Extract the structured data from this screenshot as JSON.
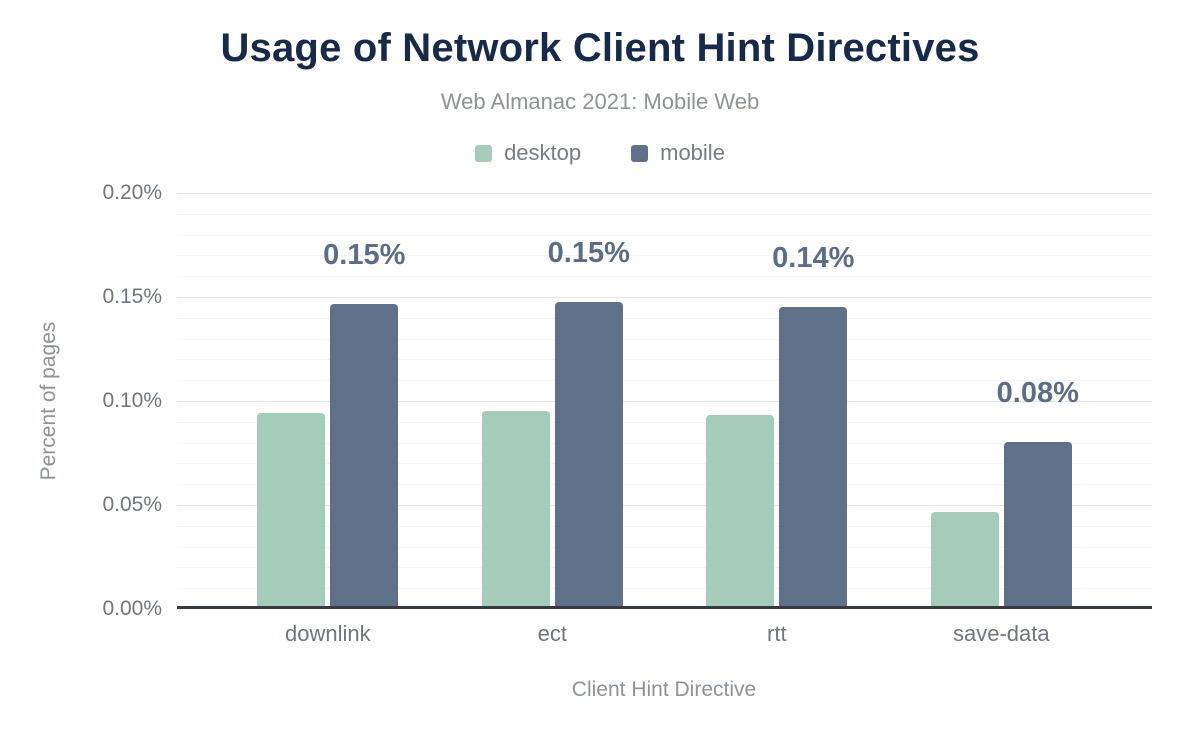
{
  "chart": {
    "title": "Usage of Network Client Hint Directives",
    "subtitle": "Web Almanac 2021: Mobile Web",
    "xlabel": "Client Hint Directive",
    "ylabel": "Percent of pages"
  },
  "colors": {
    "title_navy": "#182a4a",
    "desktop_green": "#a5cbb9",
    "mobile_slate": "#5f7089",
    "data_label": "#5c6d8a",
    "axis_text_gray": "#6f7680",
    "muted_text_gray": "#8d929b",
    "axis_line": "#363a40"
  },
  "chart_data": {
    "type": "bar",
    "title": "Usage of Network Client Hint Directives",
    "subtitle": "Web Almanac 2021: Mobile Web",
    "xlabel": "Client Hint Directive",
    "ylabel": "Percent of pages",
    "categories": [
      "downlink",
      "ect",
      "rtt",
      "save-data"
    ],
    "series": [
      {
        "name": "desktop",
        "color": "#a5cbb9",
        "values": [
          0.093,
          0.094,
          0.092,
          0.045
        ]
      },
      {
        "name": "mobile",
        "color": "#5f7089",
        "values": [
          0.145,
          0.146,
          0.144,
          0.079
        ],
        "labels": [
          "0.15%",
          "0.15%",
          "0.14%",
          "0.08%"
        ]
      }
    ],
    "ylim": [
      0,
      0.2
    ],
    "yticks": [
      {
        "value": 0.0,
        "label": "0.00%"
      },
      {
        "value": 0.05,
        "label": "0.05%"
      },
      {
        "value": 0.1,
        "label": "0.10%"
      },
      {
        "value": 0.15,
        "label": "0.15%"
      },
      {
        "value": 0.2,
        "label": "0.20%"
      }
    ],
    "minor_tick_step": 0.01,
    "grid": true,
    "legend_position": "top",
    "legend": [
      "desktop",
      "mobile"
    ]
  }
}
